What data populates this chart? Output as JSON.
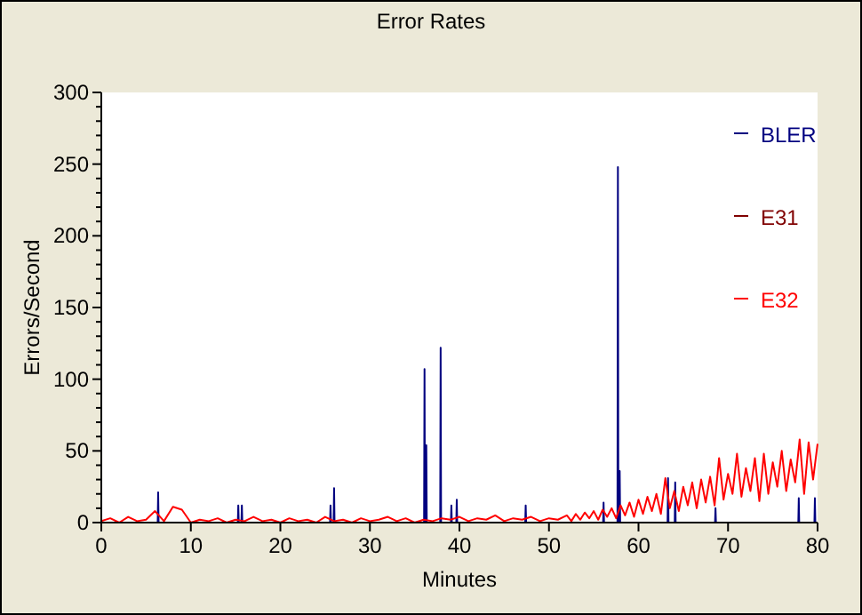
{
  "chart_data": {
    "type": "line",
    "title": "Error Rates",
    "xlabel": "Minutes",
    "ylabel": "Errors/Second",
    "x": [
      0,
      1,
      2,
      3,
      4,
      5,
      6,
      7,
      8,
      9,
      10,
      11,
      12,
      13,
      14,
      15,
      16,
      17,
      18,
      19,
      20,
      21,
      22,
      23,
      24,
      25,
      26,
      27,
      28,
      29,
      30,
      31,
      32,
      33,
      34,
      35,
      36,
      37,
      38,
      39,
      40,
      41,
      42,
      43,
      44,
      45,
      46,
      47,
      48,
      49,
      50,
      51,
      52,
      52.5,
      53,
      53.5,
      54,
      54.5,
      55,
      55.5,
      56,
      56.5,
      57,
      57.5,
      58,
      58.5,
      59,
      59.5,
      60,
      60.5,
      61,
      61.5,
      62,
      62.5,
      63,
      63.5,
      64,
      64.5,
      65,
      65.5,
      66,
      66.5,
      67,
      67.5,
      68,
      68.5,
      69,
      69.5,
      70,
      70.5,
      71,
      71.5,
      72,
      72.5,
      73,
      73.5,
      74,
      74.5,
      75,
      75.5,
      76,
      76.5,
      77,
      77.5,
      78,
      78.5,
      79,
      79.5,
      80
    ],
    "series": [
      {
        "name": "BLER",
        "color": "#000080",
        "x": [
          0,
          6.3,
          6.35,
          6.4,
          15.25,
          15.3,
          15.35,
          15.65,
          15.7,
          15.75,
          25.55,
          25.6,
          25.65,
          25.95,
          26,
          26.05,
          36.05,
          36.1,
          36.15,
          36.25,
          36.3,
          36.35,
          37.85,
          37.9,
          37.95,
          39.05,
          39.1,
          39.15,
          39.65,
          39.7,
          39.75,
          47.35,
          47.4,
          47.45,
          56.05,
          56.1,
          56.15,
          57.65,
          57.7,
          57.75,
          57.85,
          57.9,
          57.95,
          63.25,
          63.3,
          63.35,
          64.05,
          64.1,
          64.15,
          68.55,
          68.6,
          68.65,
          77.85,
          77.9,
          77.95,
          79.65,
          79.7,
          79.75,
          80
        ],
        "values": [
          0,
          0,
          21,
          0,
          0,
          12,
          0,
          0,
          12,
          0,
          0,
          12,
          0,
          0,
          24,
          0,
          0,
          107,
          0,
          0,
          54,
          0,
          0,
          122,
          0,
          0,
          12,
          0,
          0,
          16,
          0,
          0,
          12,
          0,
          0,
          14,
          0,
          0,
          248,
          0,
          0,
          36,
          0,
          0,
          31,
          0,
          0,
          28,
          0,
          0,
          10,
          0,
          0,
          17,
          0,
          0,
          17,
          0,
          0
        ]
      },
      {
        "name": "E31",
        "color": "#800000",
        "values": [
          null,
          null,
          null,
          null,
          null,
          null,
          null,
          null,
          null,
          null,
          null,
          null,
          null,
          null,
          null,
          null,
          null,
          null,
          null,
          null,
          null,
          null,
          null,
          null,
          null,
          null,
          null,
          null,
          null,
          null,
          null,
          null,
          null,
          null,
          null,
          null,
          null,
          null,
          null,
          null,
          null,
          null,
          null,
          null,
          null,
          null,
          null,
          null,
          null,
          null,
          null,
          null,
          null,
          null,
          null,
          null,
          null,
          null,
          null,
          null,
          null,
          null,
          null,
          null,
          null,
          null,
          null,
          null,
          null,
          null,
          null,
          null,
          null,
          null,
          null,
          null,
          null,
          null,
          null,
          null,
          null,
          null,
          null,
          null,
          null,
          null,
          null,
          null,
          null,
          null,
          null,
          null,
          null,
          null,
          null,
          null,
          null,
          null,
          null,
          null,
          null,
          null,
          null,
          null,
          null,
          null,
          null,
          null,
          null
        ]
      },
      {
        "name": "E32",
        "color": "#ff0000",
        "values": [
          1,
          3,
          0,
          4,
          1,
          2,
          8,
          1,
          11,
          9,
          0,
          2,
          1,
          3,
          0,
          2,
          1,
          4,
          1,
          2,
          0,
          3,
          1,
          2,
          0,
          4,
          1,
          2,
          0,
          3,
          1,
          2,
          4,
          1,
          3,
          0,
          2,
          1,
          3,
          2,
          4,
          1,
          3,
          2,
          5,
          1,
          3,
          2,
          4,
          1,
          3,
          2,
          5,
          1,
          6,
          2,
          7,
          3,
          8,
          2,
          9,
          4,
          10,
          3,
          12,
          5,
          14,
          4,
          16,
          6,
          18,
          8,
          20,
          6,
          31,
          10,
          22,
          8,
          25,
          12,
          28,
          10,
          30,
          14,
          32,
          12,
          45,
          16,
          34,
          20,
          48,
          18,
          38,
          22,
          45,
          15,
          48,
          20,
          42,
          25,
          50,
          22,
          44,
          28,
          58,
          20,
          56,
          30,
          55
        ]
      }
    ],
    "xlim": [
      0,
      80
    ],
    "xticks": [
      0,
      10,
      20,
      30,
      40,
      50,
      60,
      70,
      80
    ],
    "ylim": [
      0,
      300
    ],
    "yticks": [
      0,
      {
        "value": 10,
        "label": null
      },
      {
        "value": 20,
        "label": null
      },
      {
        "value": 30,
        "label": null
      },
      {
        "value": 40,
        "label": null
      },
      50,
      {
        "value": 60,
        "label": null
      },
      {
        "value": 70,
        "label": null
      },
      {
        "value": 80,
        "label": null
      },
      {
        "value": 90,
        "label": null
      },
      100,
      {
        "value": 110,
        "label": null
      },
      {
        "value": 120,
        "label": null
      },
      {
        "value": 130,
        "label": null
      },
      {
        "value": 140,
        "label": null
      },
      150,
      {
        "value": 160,
        "label": null
      },
      {
        "value": 170,
        "label": null
      },
      {
        "value": 180,
        "label": null
      },
      {
        "value": 190,
        "label": null
      },
      200,
      {
        "value": 210,
        "label": null
      },
      {
        "value": 220,
        "label": null
      },
      {
        "value": 230,
        "label": null
      },
      {
        "value": 240,
        "label": null
      },
      250,
      {
        "value": 260,
        "label": null
      },
      {
        "value": 270,
        "label": null
      },
      {
        "value": 280,
        "label": null
      },
      {
        "value": 290,
        "label": null
      },
      300
    ],
    "grid": false,
    "legend": "top right",
    "marker": "none",
    "line_style": "solid"
  }
}
